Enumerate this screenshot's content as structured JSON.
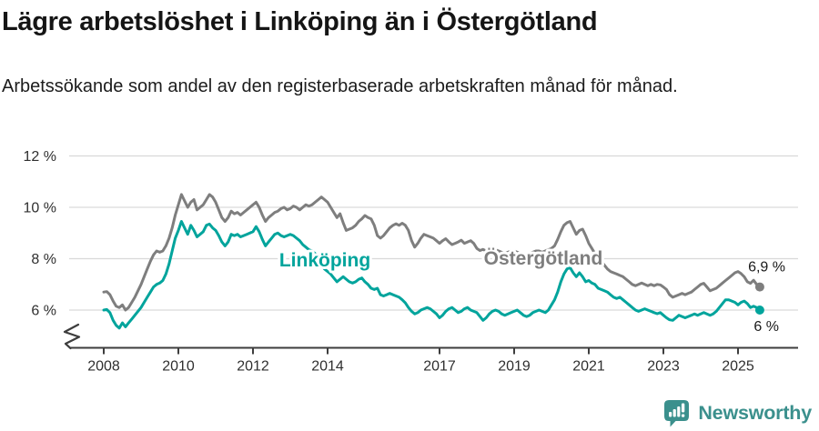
{
  "header": {
    "title": "Lägre arbetslöshet i Linköping än i Östergötland",
    "subtitle": "Arbetssökande som andel av den registerbaserade arbetskraften månad för månad."
  },
  "footer": {
    "logo_text": "Newsworthy",
    "logo_icon": "speech-bubble-bar-chart-exclamation-icon",
    "logo_color": "#3b908d"
  },
  "colors": {
    "linkoping_line": "#00a49c",
    "ostergotland_line": "#7e7e7e",
    "gridline": "#d9d9d9",
    "axis": "#3d3d3d",
    "axis_label": "#2f2f2f",
    "end_label_text": "#1a1a1a"
  },
  "chart_data": {
    "type": "line",
    "title": "Lägre arbetslöshet i Linköping än i Östergötland",
    "xlabel": "",
    "ylabel": "",
    "unit": "%",
    "x_unit": "month",
    "x_start": "2008-01",
    "x_end": "2025-08",
    "grid": "horizontal",
    "legend_position": "inline-labels",
    "y_axis_break": true,
    "ylim_display": [
      5.2,
      12.4
    ],
    "x_ticks": [
      2008,
      2010,
      2012,
      2014,
      2017,
      2019,
      2021,
      2023,
      2025
    ],
    "y_ticks": [
      {
        "value": 12,
        "label": "12 %"
      },
      {
        "value": 10,
        "label": "10 %"
      },
      {
        "value": 8,
        "label": "8 %"
      },
      {
        "value": 6,
        "label": "6 %"
      }
    ],
    "series": [
      {
        "name": "Östergötland",
        "color": "#7e7e7e",
        "end_label": "6,9 %",
        "end_value": 6.9,
        "end_marker": "dot",
        "values": [
          6.7,
          6.72,
          6.6,
          6.35,
          6.15,
          6.1,
          6.2,
          6.0,
          6.1,
          6.3,
          6.5,
          6.75,
          7.0,
          7.3,
          7.6,
          7.9,
          8.15,
          8.3,
          8.25,
          8.3,
          8.5,
          8.8,
          9.2,
          9.7,
          10.1,
          10.5,
          10.25,
          10.0,
          10.2,
          10.3,
          9.9,
          10.0,
          10.1,
          10.3,
          10.5,
          10.4,
          10.2,
          9.9,
          9.6,
          9.45,
          9.6,
          9.85,
          9.75,
          9.8,
          9.7,
          9.8,
          9.9,
          10.0,
          10.1,
          10.2,
          10.0,
          9.7,
          9.45,
          9.6,
          9.7,
          9.8,
          9.85,
          9.95,
          10.0,
          9.9,
          9.95,
          10.05,
          10.0,
          9.9,
          10.0,
          10.1,
          10.05,
          10.1,
          10.2,
          10.3,
          10.4,
          10.3,
          10.2,
          10.0,
          9.8,
          9.6,
          9.75,
          9.4,
          9.1,
          9.15,
          9.2,
          9.3,
          9.45,
          9.55,
          9.68,
          9.6,
          9.55,
          9.3,
          8.9,
          8.8,
          8.9,
          9.05,
          9.2,
          9.3,
          9.36,
          9.3,
          9.38,
          9.3,
          9.1,
          8.7,
          8.45,
          8.6,
          8.8,
          8.95,
          8.9,
          8.85,
          8.8,
          8.7,
          8.6,
          8.7,
          8.78,
          8.65,
          8.55,
          8.6,
          8.65,
          8.72,
          8.6,
          8.65,
          8.7,
          8.6,
          8.4,
          8.32,
          8.36,
          8.3,
          8.25,
          8.3,
          8.35,
          8.3,
          8.25,
          8.2,
          8.25,
          8.3,
          8.3,
          8.25,
          8.2,
          8.15,
          8.16,
          8.2,
          8.25,
          8.3,
          8.3,
          8.25,
          8.3,
          8.35,
          8.4,
          8.5,
          8.75,
          9.05,
          9.3,
          9.4,
          9.45,
          9.2,
          8.95,
          9.1,
          9.15,
          8.9,
          8.6,
          8.4,
          8.2,
          8.0,
          7.9,
          7.75,
          7.6,
          7.5,
          7.45,
          7.4,
          7.35,
          7.3,
          7.2,
          7.1,
          7.0,
          6.95,
          7.0,
          7.05,
          7.0,
          6.95,
          7.0,
          6.95,
          7.0,
          6.98,
          6.9,
          6.8,
          6.6,
          6.5,
          6.55,
          6.6,
          6.65,
          6.6,
          6.65,
          6.7,
          6.8,
          6.9,
          7.0,
          7.04,
          6.9,
          6.75,
          6.8,
          6.85,
          6.95,
          7.05,
          7.15,
          7.25,
          7.35,
          7.45,
          7.5,
          7.42,
          7.3,
          7.1,
          7.04,
          7.16,
          7.0,
          6.9
        ]
      },
      {
        "name": "Linköping",
        "color": "#00a49c",
        "end_label": "6 %",
        "end_value": 6.0,
        "end_marker": "dot",
        "values": [
          6.0,
          6.02,
          5.9,
          5.6,
          5.4,
          5.3,
          5.5,
          5.35,
          5.5,
          5.65,
          5.8,
          5.95,
          6.1,
          6.3,
          6.5,
          6.7,
          6.9,
          7.0,
          7.05,
          7.15,
          7.4,
          7.8,
          8.3,
          8.8,
          9.1,
          9.45,
          9.2,
          8.95,
          9.3,
          9.1,
          8.85,
          8.95,
          9.05,
          9.3,
          9.35,
          9.2,
          9.1,
          8.9,
          8.65,
          8.5,
          8.65,
          8.95,
          8.9,
          8.95,
          8.85,
          8.9,
          8.95,
          9.0,
          9.05,
          9.25,
          9.05,
          8.75,
          8.5,
          8.65,
          8.8,
          8.95,
          9.0,
          8.9,
          8.85,
          8.9,
          8.95,
          8.9,
          8.8,
          8.7,
          8.55,
          8.45,
          8.35,
          8.3,
          8.2,
          8.0,
          7.8,
          7.6,
          7.5,
          7.4,
          7.25,
          7.1,
          7.2,
          7.3,
          7.2,
          7.1,
          7.05,
          7.1,
          7.2,
          7.25,
          7.1,
          7.0,
          6.85,
          6.8,
          6.85,
          6.6,
          6.55,
          6.6,
          6.65,
          6.6,
          6.55,
          6.5,
          6.4,
          6.28,
          6.1,
          5.95,
          5.85,
          5.9,
          6.0,
          6.05,
          6.1,
          6.05,
          5.95,
          5.85,
          5.7,
          5.8,
          5.95,
          6.05,
          6.1,
          6.0,
          5.9,
          5.95,
          6.05,
          6.1,
          6.0,
          5.95,
          5.9,
          5.75,
          5.6,
          5.7,
          5.85,
          5.95,
          6.0,
          5.95,
          5.85,
          5.8,
          5.85,
          5.9,
          5.95,
          6.0,
          5.9,
          5.8,
          5.75,
          5.8,
          5.9,
          5.95,
          6.0,
          5.95,
          5.9,
          6.0,
          6.2,
          6.4,
          6.7,
          7.1,
          7.4,
          7.6,
          7.65,
          7.45,
          7.3,
          7.45,
          7.3,
          7.1,
          7.15,
          7.05,
          7.0,
          6.85,
          6.8,
          6.75,
          6.7,
          6.6,
          6.5,
          6.45,
          6.5,
          6.4,
          6.3,
          6.2,
          6.1,
          6.0,
          5.95,
          6.0,
          6.05,
          6.0,
          5.95,
          5.9,
          5.86,
          5.9,
          5.8,
          5.7,
          5.62,
          5.6,
          5.7,
          5.8,
          5.75,
          5.7,
          5.75,
          5.8,
          5.85,
          5.8,
          5.85,
          5.9,
          5.85,
          5.8,
          5.85,
          5.95,
          6.1,
          6.25,
          6.4,
          6.4,
          6.35,
          6.3,
          6.2,
          6.3,
          6.35,
          6.25,
          6.1,
          6.15,
          6.1,
          6.0
        ]
      }
    ]
  }
}
